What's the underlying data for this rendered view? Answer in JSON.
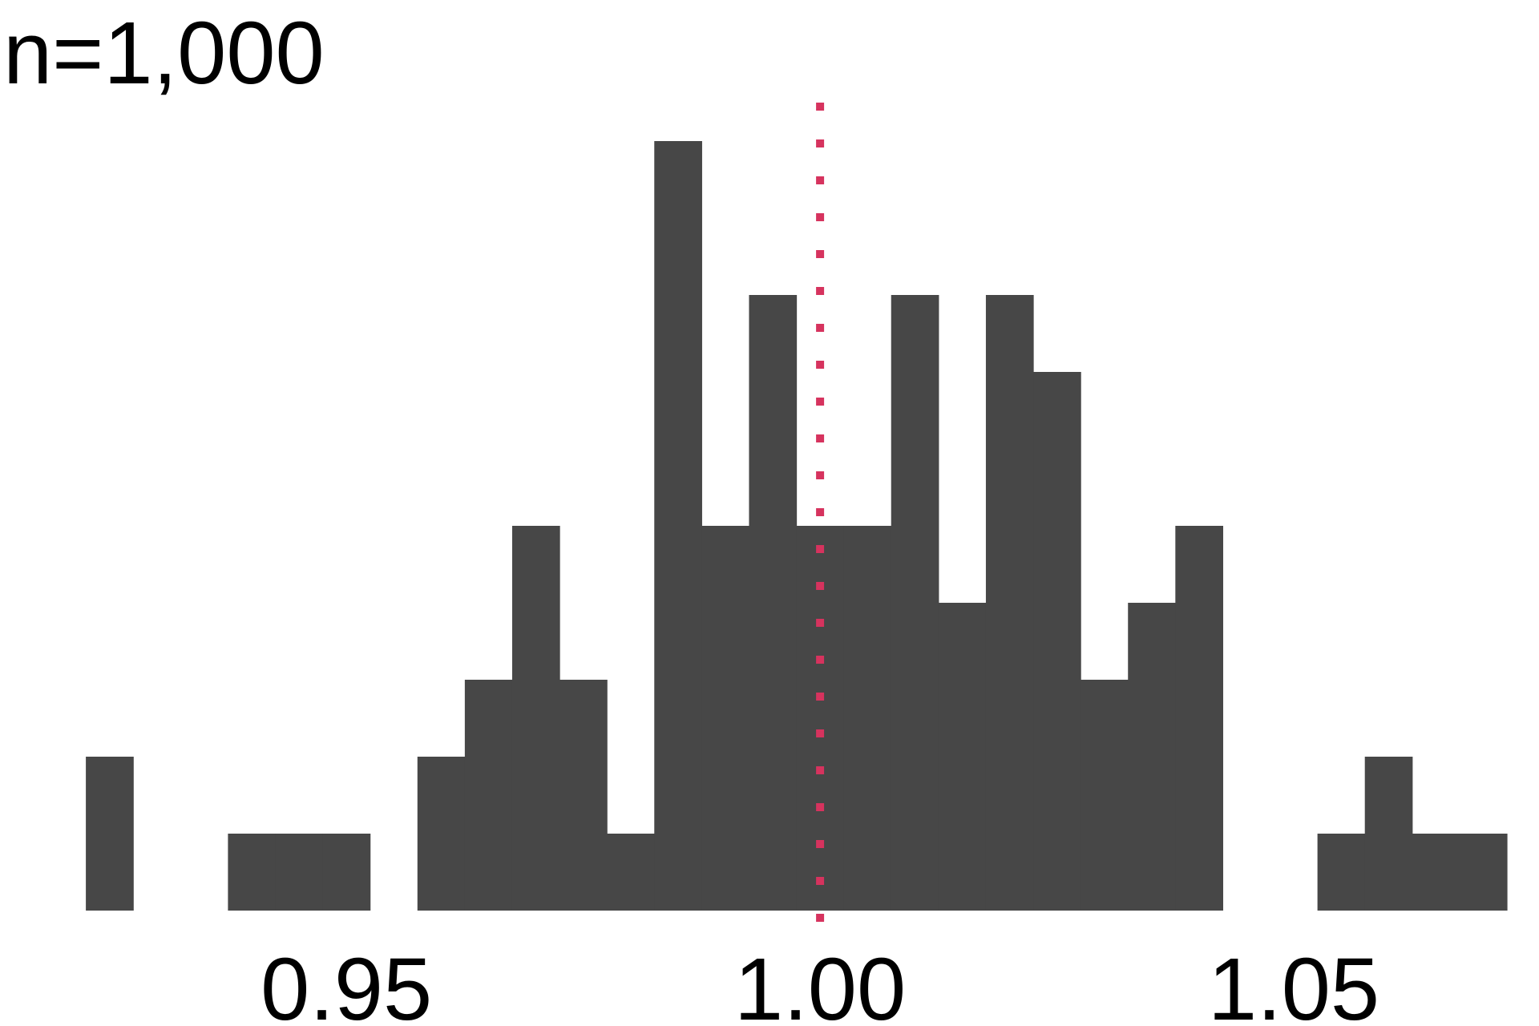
{
  "chart_data": {
    "type": "bar",
    "title": "n=1,000",
    "xlabel": "",
    "ylabel": "",
    "xlim": [
      0.9175,
      1.0725
    ],
    "ylim": [
      0,
      10
    ],
    "grid": false,
    "bin_width": 0.005,
    "bin_start": 0.9225,
    "counts": [
      2,
      0,
      0,
      1,
      1,
      1,
      0,
      2,
      3,
      5,
      3,
      1,
      10,
      5,
      8,
      5,
      5,
      8,
      4,
      8,
      7,
      3,
      4,
      5,
      0,
      0,
      1,
      2,
      1,
      1
    ],
    "reference_line": {
      "x": 1.0,
      "color": "#d6335e",
      "style": "dotted"
    },
    "bar_color": "#474747",
    "x_ticks": [
      {
        "value": 0.95,
        "label": "0.95"
      },
      {
        "value": 1.0,
        "label": "1.00"
      },
      {
        "value": 1.05,
        "label": "1.05"
      }
    ]
  }
}
